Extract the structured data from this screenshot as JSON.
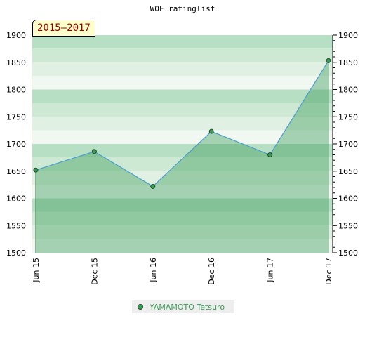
{
  "title": "WOF ratinglist",
  "period_label": "2015–2017",
  "colors": {
    "line": "#4a9ecf",
    "area_fill": "#3c9b58",
    "marker": "#3c9b58",
    "bands_light": [
      "#b7dfc3",
      "#cde9d4",
      "#e0f1e4",
      "#f0f8f1"
    ],
    "bands_dark": [
      "#7fc594",
      "#8fcca1",
      "#9fd3ae"
    ]
  },
  "chart_data": {
    "type": "area",
    "title": "WOF ratinglist",
    "categories": [
      "Jun 15",
      "Dec 15",
      "Jun 16",
      "Dec 16",
      "Jun 17",
      "Dec 17"
    ],
    "series": [
      {
        "name": "YAMAMOTO Tetsuro",
        "values": [
          1652,
          1686,
          1622,
          1723,
          1680,
          1853
        ]
      }
    ],
    "ylim": [
      1500,
      1900
    ],
    "yticks": [
      1500,
      1550,
      1600,
      1650,
      1700,
      1750,
      1800,
      1850,
      1900
    ],
    "ytick_labels": [
      "1500",
      "1550",
      "1600",
      "1650",
      "1700",
      "1750",
      "1800",
      "1850",
      "1900"
    ],
    "right_axis": true,
    "grid": false,
    "legend_position": "bottom-center",
    "xlabel": "",
    "ylabel": ""
  }
}
